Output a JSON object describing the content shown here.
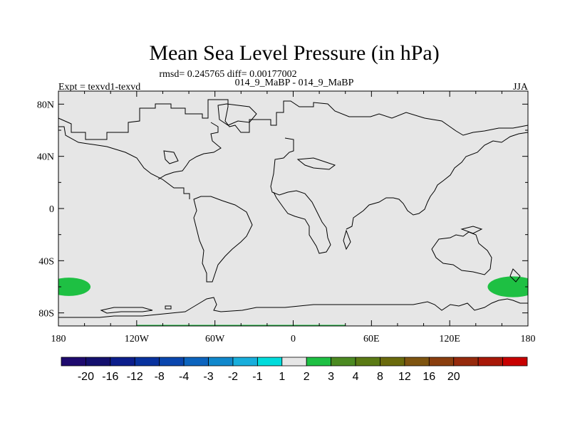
{
  "chart_data": {
    "type": "heatmap",
    "title": "Mean Sea Level Pressure (in hPa)",
    "stats_line": "rmsd= 0.245765 diff= 0.00177002",
    "subtitle": "014_9_MaBP - 014_9_MaBP",
    "left_label": "Expt = texvd1-texvd",
    "right_label": "JJA",
    "xlim": [
      -180,
      180
    ],
    "ylim": [
      -90,
      90
    ],
    "x_ticks": [
      {
        "value": -180,
        "label": "180"
      },
      {
        "value": -120,
        "label": "120W"
      },
      {
        "value": -60,
        "label": "60W"
      },
      {
        "value": 0,
        "label": "0"
      },
      {
        "value": 60,
        "label": "60E"
      },
      {
        "value": 120,
        "label": "120E"
      },
      {
        "value": 180,
        "label": "180"
      }
    ],
    "y_ticks": [
      {
        "value": 80,
        "label": "80N"
      },
      {
        "value": 40,
        "label": "40N"
      },
      {
        "value": 0,
        "label": "0"
      },
      {
        "value": -40,
        "label": "40S"
      },
      {
        "value": -80,
        "label": "80S"
      }
    ],
    "background_color": "#e6e6e6",
    "coastline_color": "#000000",
    "anomaly_regions": [
      {
        "name": "south-pacific-west",
        "lon_range": [
          -180,
          -157
        ],
        "lat_range": [
          -67,
          -53
        ],
        "color": "#1ec043"
      },
      {
        "name": "south-pacific-east",
        "lon_range": [
          150,
          180
        ],
        "lat_range": [
          -68,
          -52
        ],
        "color": "#1ec043"
      }
    ],
    "colorbar": {
      "levels": [
        "-20",
        "-16",
        "-12",
        "-8",
        "-4",
        "-3",
        "-2",
        "-1",
        "1",
        "2",
        "3",
        "4",
        "8",
        "12",
        "16",
        "20"
      ],
      "colors": [
        "#1e0a6e",
        "#14106e",
        "#0c1e8c",
        "#08329e",
        "#0a46ae",
        "#0c64be",
        "#1088cc",
        "#18aedc",
        "#00dcdc",
        "#e6e6e6",
        "#1ec043",
        "#4b8a21",
        "#5a7a14",
        "#6a6a0c",
        "#7e5410",
        "#8a3e0e",
        "#962a0c",
        "#a81808",
        "#c80000"
      ]
    }
  }
}
